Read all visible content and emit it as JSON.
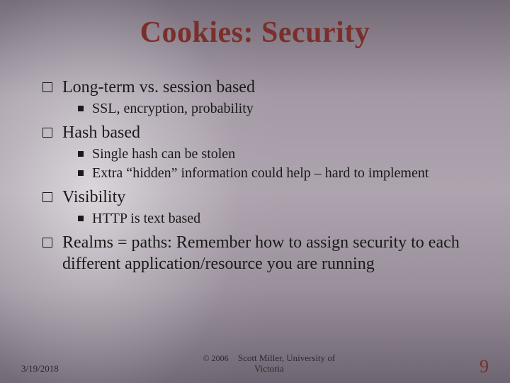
{
  "title": "Cookies: Security",
  "colors": {
    "title": "#7a2f2a",
    "body_text": "#1a1a1a",
    "pagenum": "#7a2f2a",
    "bg_light": "#aea4af",
    "bg_dark": "#6e6572"
  },
  "typography": {
    "title_fontsize": 42,
    "lvl1_fontsize": 24,
    "lvl2_fontsize": 20,
    "footer_fontsize": 13,
    "pagenum_fontsize": 26,
    "font_family": "Palatino Linotype"
  },
  "bullets": [
    {
      "text": "Long-term vs. session based",
      "children": [
        "SSL, encryption, probability"
      ]
    },
    {
      "text": "Hash based",
      "children": [
        "Single hash can be stolen",
        "Extra “hidden” information could help – hard to implement"
      ]
    },
    {
      "text": "Visibility",
      "children": [
        "HTTP is text based"
      ]
    },
    {
      "text": "Realms = paths: Remember how to assign security to each different application/resource you are running",
      "children": []
    }
  ],
  "footer": {
    "date": "3/19/2018",
    "copyright": "© 2006",
    "author_line1": "Scott Miller, University of",
    "author_line2": "Victoria",
    "pagenum": "9"
  }
}
